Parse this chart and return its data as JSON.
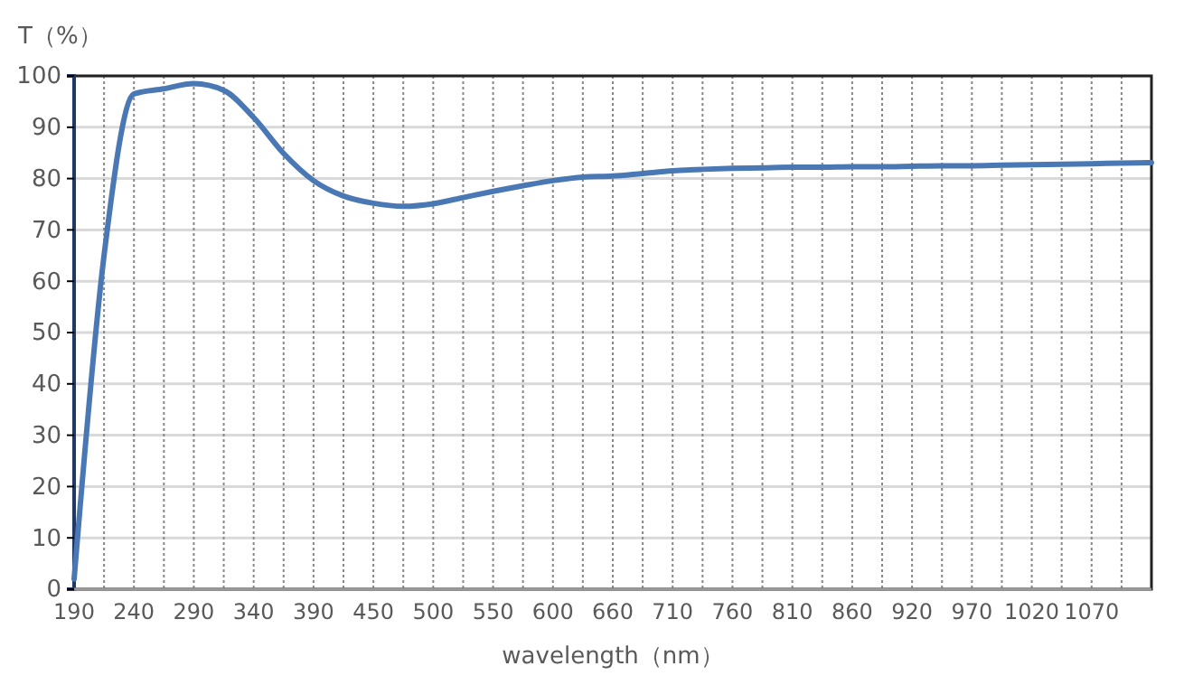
{
  "chart_data": {
    "type": "line",
    "ylabel": "T（%）",
    "xlabel": "wavelength（nm）",
    "categories": [
      "190",
      null,
      "240",
      null,
      "290",
      null,
      "340",
      null,
      "390",
      null,
      "450",
      null,
      "500",
      null,
      "550",
      null,
      "600",
      null,
      "660",
      null,
      "710",
      null,
      "760",
      null,
      "810",
      null,
      "860",
      null,
      "920",
      null,
      "970",
      null,
      "1020",
      null,
      "1070",
      null,
      null
    ],
    "series": [
      {
        "color": "#4a78b4",
        "values": [
          2,
          65,
          96.5,
          97.5,
          98.5,
          97.2,
          91.9,
          84.9,
          79.6,
          76.6,
          75.2,
          74.6,
          75.1,
          76.3,
          77.5,
          78.6,
          79.6,
          80.3,
          80.5,
          81,
          81.5,
          81.8,
          82,
          82.1,
          82.2,
          82.2,
          82.3,
          82.3,
          82.4,
          82.5,
          82.5,
          82.6,
          82.7,
          82.8,
          82.9,
          83,
          83.1
        ]
      }
    ],
    "ylim": [
      0,
      100
    ],
    "yticks": [
      0,
      10,
      20,
      30,
      40,
      50,
      60,
      70,
      80,
      90,
      100
    ],
    "grid": true,
    "marker": "none",
    "line_style": "solid"
  }
}
